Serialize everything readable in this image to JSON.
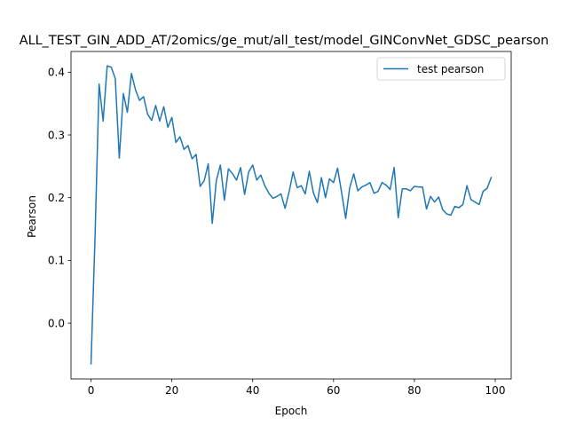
{
  "chart_data": {
    "type": "line",
    "title": "ALL_TEST_GIN_ADD_AT/2omics/ge_mut/all_test/model_GINConvNet_GDSC_pearson",
    "xlabel": "Epoch",
    "ylabel": "Pearson",
    "xlim": [
      -4.95,
      103.95
    ],
    "ylim": [
      -0.089,
      0.433
    ],
    "xticks": [
      0,
      20,
      40,
      60,
      80,
      100
    ],
    "yticks": [
      0.0,
      0.1,
      0.2,
      0.3,
      0.4
    ],
    "xtick_labels": [
      "0",
      "20",
      "40",
      "60",
      "80",
      "100"
    ],
    "ytick_labels": [
      "0.0",
      "0.1",
      "0.2",
      "0.3",
      "0.4"
    ],
    "grid": false,
    "legend": {
      "position": "upper right"
    },
    "series": [
      {
        "name": "test pearson",
        "color": "#1f77b4",
        "x": [
          0,
          1,
          2,
          3,
          4,
          5,
          6,
          7,
          8,
          9,
          10,
          11,
          12,
          13,
          14,
          15,
          16,
          17,
          18,
          19,
          20,
          21,
          22,
          23,
          24,
          25,
          26,
          27,
          28,
          29,
          30,
          31,
          32,
          33,
          34,
          35,
          36,
          37,
          38,
          39,
          40,
          41,
          42,
          43,
          44,
          45,
          46,
          47,
          48,
          49,
          50,
          51,
          52,
          53,
          54,
          55,
          56,
          57,
          58,
          59,
          60,
          61,
          62,
          63,
          64,
          65,
          66,
          67,
          68,
          69,
          70,
          71,
          72,
          73,
          74,
          75,
          76,
          77,
          78,
          79,
          80,
          81,
          82,
          83,
          84,
          85,
          86,
          87,
          88,
          89,
          90,
          91,
          92,
          93,
          94,
          95,
          96,
          97,
          98,
          99
        ],
        "values": [
          -0.065,
          0.138,
          0.381,
          0.322,
          0.41,
          0.408,
          0.39,
          0.263,
          0.366,
          0.336,
          0.398,
          0.372,
          0.355,
          0.361,
          0.333,
          0.323,
          0.347,
          0.322,
          0.345,
          0.312,
          0.328,
          0.288,
          0.297,
          0.277,
          0.283,
          0.262,
          0.269,
          0.218,
          0.227,
          0.254,
          0.159,
          0.227,
          0.252,
          0.196,
          0.246,
          0.238,
          0.228,
          0.248,
          0.205,
          0.241,
          0.252,
          0.228,
          0.236,
          0.219,
          0.207,
          0.199,
          0.202,
          0.206,
          0.183,
          0.209,
          0.241,
          0.216,
          0.219,
          0.206,
          0.242,
          0.208,
          0.192,
          0.232,
          0.2,
          0.23,
          0.224,
          0.247,
          0.208,
          0.167,
          0.216,
          0.238,
          0.211,
          0.217,
          0.22,
          0.224,
          0.207,
          0.21,
          0.224,
          0.22,
          0.213,
          0.248,
          0.168,
          0.214,
          0.214,
          0.211,
          0.218,
          0.217,
          0.217,
          0.182,
          0.202,
          0.193,
          0.201,
          0.181,
          0.174,
          0.172,
          0.186,
          0.184,
          0.189,
          0.219,
          0.197,
          0.193,
          0.189,
          0.21,
          0.215,
          0.232
        ]
      }
    ]
  }
}
